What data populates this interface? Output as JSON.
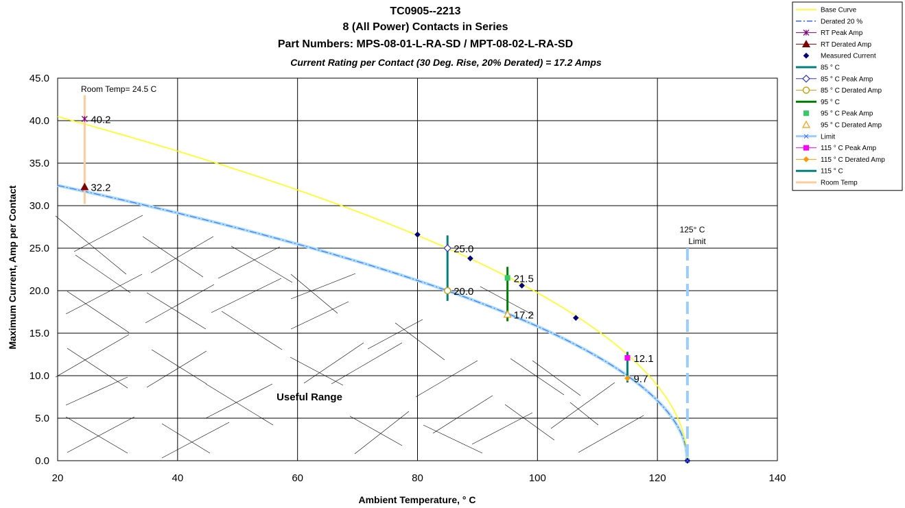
{
  "chart_data": {
    "type": "line",
    "title_lines": [
      "TC0905--2213",
      "8 (All Power) Contacts in Series",
      "Part Numbers: MPS-08-01-L-RA-SD / MPT-08-02-L-RA-SD"
    ],
    "subtitle": "Current Rating per Contact (30 Deg. Rise, 20% Derated)  = 17.2 Amps",
    "xlabel": "Ambient Temperature,  ° C",
    "ylabel": "Maximum Current, Amp per Contact",
    "xlim": [
      20,
      140
    ],
    "ylim": [
      0,
      45
    ],
    "xticks": [
      20,
      40,
      60,
      80,
      100,
      120,
      140
    ],
    "yticks": [
      "0.0",
      "5.0",
      "10.0",
      "15.0",
      "20.0",
      "25.0",
      "30.0",
      "35.0",
      "40.0",
      "45.0"
    ],
    "grid": true,
    "legend_position": "top-right, outside plot",
    "curve_model": {
      "limit_temp": 125,
      "base_coefficient": 3.95,
      "derating_factor": 0.8
    },
    "annotations": {
      "room_temp": "Room Temp= 24.5 C",
      "limit": [
        "125° C",
        "Limit"
      ],
      "useful_range": "Useful Range"
    },
    "series": [
      {
        "name": "Base Curve",
        "color": "#ffff00",
        "style": "line",
        "x": [
          20,
          24.5,
          40,
          60,
          80,
          85,
          95,
          106.4,
          115,
          120,
          123,
          125
        ],
        "y": [
          41.2,
          40.2,
          37.0,
          32.1,
          26.4,
          25.0,
          21.5,
          17.0,
          12.1,
          8.7,
          5.8,
          0
        ]
      },
      {
        "name": "Derated 20 %",
        "color": "#3366ff",
        "style": "dashdot",
        "x": [
          20,
          24.5,
          40,
          60,
          80,
          85,
          95,
          106.4,
          115,
          120,
          123,
          125
        ],
        "y": [
          33.0,
          32.2,
          29.6,
          25.6,
          21.2,
          20.0,
          17.2,
          13.6,
          9.7,
          7.0,
          4.6,
          0
        ]
      },
      {
        "name": "RT Peak Amp",
        "color": "#800080",
        "style": "marker-x",
        "x": [
          24.5
        ],
        "y": [
          40.2
        ],
        "labels": [
          "40.2"
        ]
      },
      {
        "name": "RT Derated Amp",
        "color": "#800000",
        "style": "marker-triangle",
        "x": [
          24.5
        ],
        "y": [
          32.2
        ],
        "labels": [
          "32.2"
        ]
      },
      {
        "name": "Measured Current",
        "color": "#000080",
        "style": "marker-diamond",
        "x": [
          80,
          88.8,
          97.4,
          106.4,
          125
        ],
        "y": [
          26.6,
          23.8,
          20.6,
          16.8,
          0
        ]
      },
      {
        "name": "85 ° C",
        "color": "#008080",
        "style": "vline",
        "x": [
          85,
          85
        ],
        "y": [
          26.5,
          18.8
        ]
      },
      {
        "name": "85  ° C Peak Amp",
        "color": "#3333cc",
        "style": "marker-diamond-open",
        "x": [
          85
        ],
        "y": [
          25.0
        ],
        "labels": [
          "25.0"
        ]
      },
      {
        "name": "85  ° C Derated Amp",
        "color": "#cc9900",
        "style": "marker-circle-open",
        "x": [
          85
        ],
        "y": [
          20.0
        ],
        "labels": [
          "20.0"
        ]
      },
      {
        "name": "95  ° C",
        "color": "#008000",
        "style": "vline",
        "x": [
          95,
          95
        ],
        "y": [
          22.8,
          16.4
        ]
      },
      {
        "name": "95  ° C Peak Amp",
        "color": "#33cc66",
        "style": "marker-square",
        "x": [
          95
        ],
        "y": [
          21.5
        ],
        "labels": [
          "21.5"
        ]
      },
      {
        "name": "95  ° C Derated Amp",
        "color": "#ff9900",
        "style": "marker-triangle-open",
        "x": [
          95
        ],
        "y": [
          17.2
        ],
        "labels": [
          "17.2"
        ]
      },
      {
        "name": "Limit",
        "color": "#99ccff",
        "style": "dashed-vline",
        "x": [
          125,
          125
        ],
        "y": [
          25.0,
          0
        ]
      },
      {
        "name": "115  ° C Peak Amp",
        "color": "#ff00ff",
        "style": "marker-square",
        "x": [
          115
        ],
        "y": [
          12.1
        ],
        "labels": [
          "12.1"
        ]
      },
      {
        "name": "115  ° C Derated Amp",
        "color": "#ff9900",
        "style": "marker-diamond",
        "x": [
          115
        ],
        "y": [
          9.7
        ],
        "labels": [
          "9.7"
        ]
      },
      {
        "name": "115  ° C",
        "color": "#008080",
        "style": "vline",
        "x": [
          115,
          115
        ],
        "y": [
          12.8,
          9.2
        ]
      },
      {
        "name": "Room Temp",
        "color": "#ffcc99",
        "style": "vline",
        "x": [
          24.5,
          24.5
        ],
        "y": [
          43.0,
          30.2
        ]
      }
    ]
  }
}
